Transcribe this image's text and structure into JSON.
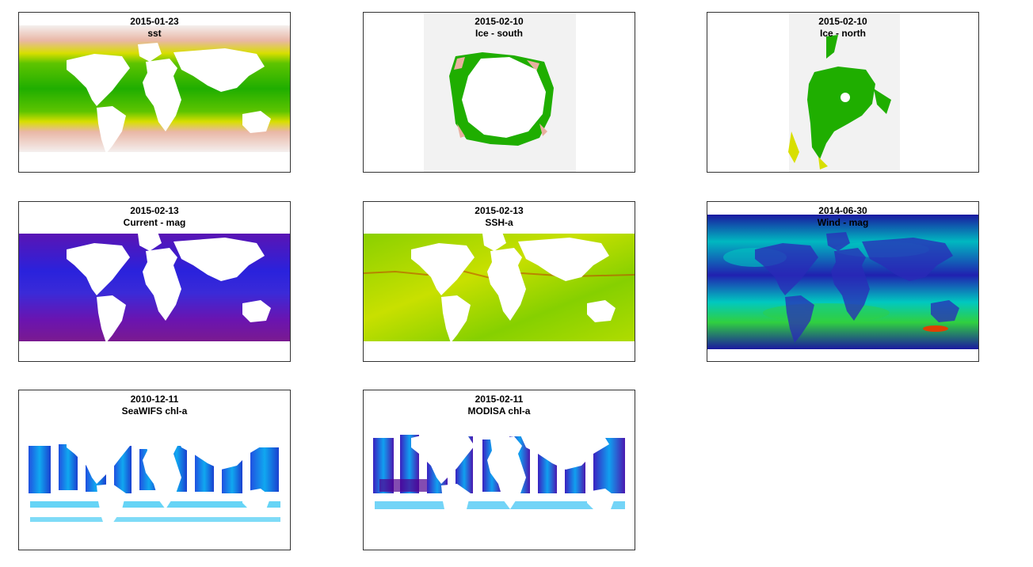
{
  "panels": [
    {
      "date": "2015-01-23",
      "name": "sst"
    },
    {
      "date": "2015-02-10",
      "name": "Ice - south"
    },
    {
      "date": "2015-02-10",
      "name": "Ice - north"
    },
    {
      "date": "2015-02-13",
      "name": "Current - mag"
    },
    {
      "date": "2015-02-13",
      "name": "SSH-a"
    },
    {
      "date": "2014-06-30",
      "name": "Wind - mag"
    },
    {
      "date": "2010-12-11",
      "name": "SeaWIFS chl-a"
    },
    {
      "date": "2015-02-11",
      "name": "MODISA chl-a"
    }
  ],
  "chart_data": [
    {
      "type": "heatmap",
      "title": "2015-01-23",
      "subtitle": "sst",
      "colors": [
        "#e8b0a0",
        "#e0e000",
        "#1fae00"
      ]
    },
    {
      "type": "heatmap",
      "title": "2015-02-10",
      "subtitle": "Ice - south",
      "colors": [
        "#f2f2f2",
        "#e8b0a0",
        "#1fae00"
      ]
    },
    {
      "type": "heatmap",
      "title": "2015-02-10",
      "subtitle": "Ice - north",
      "colors": [
        "#f2f2f2",
        "#e8b0a0",
        "#1fae00"
      ]
    },
    {
      "type": "heatmap",
      "title": "2015-02-13",
      "subtitle": "Current - mag",
      "colors": [
        "#5a10b0",
        "#2020e0",
        "#7a20a0"
      ]
    },
    {
      "type": "heatmap",
      "title": "2015-02-13",
      "subtitle": "SSH-a",
      "colors": [
        "#7fd000",
        "#d0e000",
        "#c04000"
      ]
    },
    {
      "type": "heatmap",
      "title": "2014-06-30",
      "subtitle": "Wind - mag",
      "colors": [
        "#2020a0",
        "#00c0c0",
        "#40e020",
        "#e04000"
      ]
    },
    {
      "type": "heatmap",
      "title": "2010-12-11",
      "subtitle": "SeaWIFS chl-a",
      "colors": [
        "#1060f0",
        "#00b0f0",
        "#40d080"
      ]
    },
    {
      "type": "heatmap",
      "title": "2015-02-11",
      "subtitle": "MODISA chl-a",
      "colors": [
        "#2030d0",
        "#00a0f0",
        "#500090"
      ]
    }
  ]
}
